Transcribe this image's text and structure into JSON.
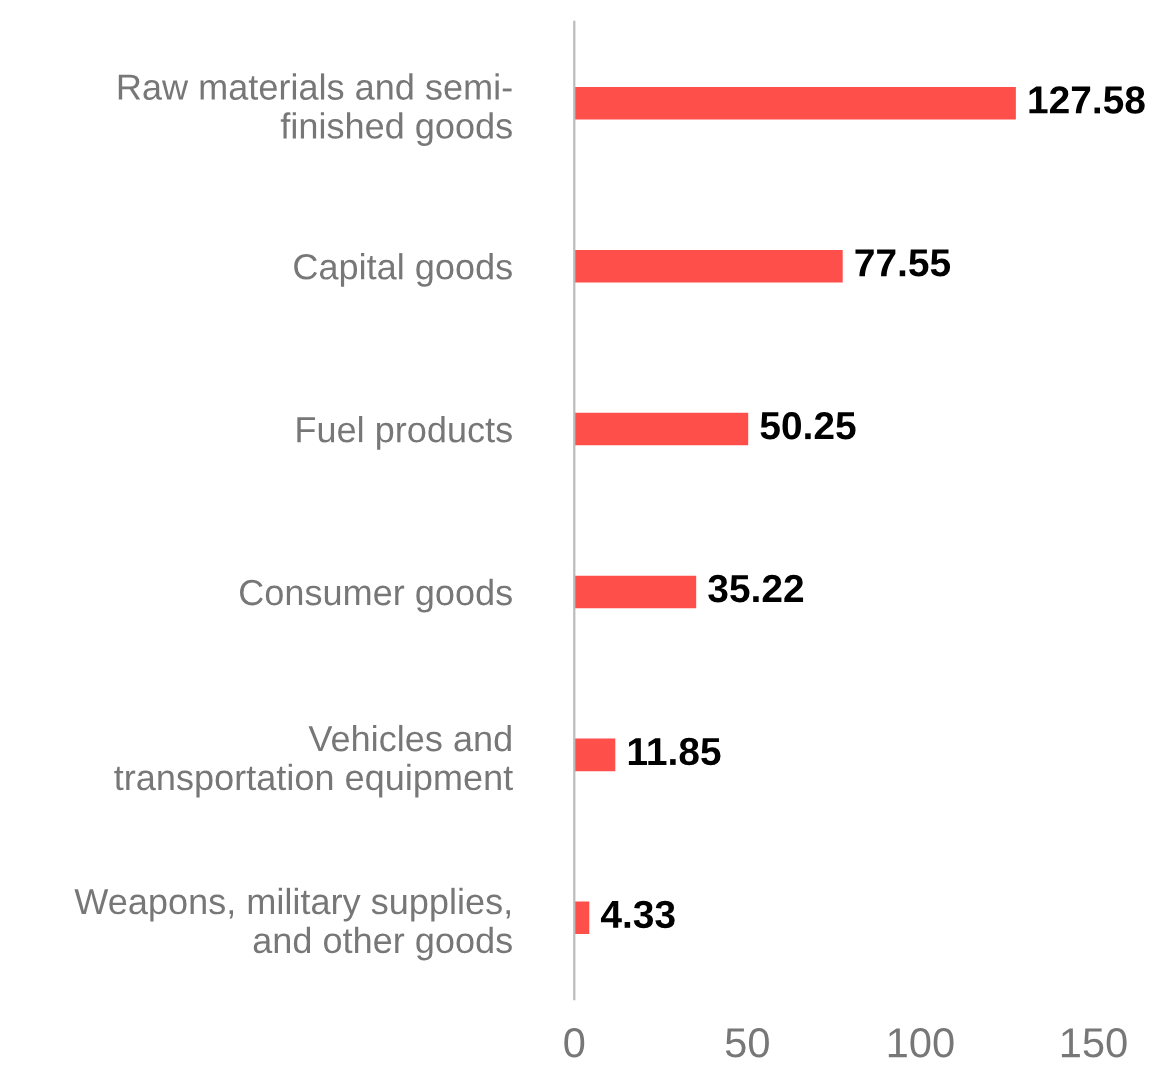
{
  "chart_data": {
    "type": "bar",
    "orientation": "horizontal",
    "categories": [
      "Raw materials and semi-\nfinished goods",
      "Capital goods",
      "Fuel products",
      "Consumer goods",
      "Vehicles and\ntransportation equipment",
      "Weapons, military supplies,\nand other goods"
    ],
    "values": [
      127.58,
      77.55,
      50.25,
      35.22,
      11.85,
      4.33
    ],
    "color": "#ff4f4a",
    "xlim": [
      0,
      150
    ],
    "xticks": [
      0,
      50,
      100,
      150
    ],
    "data_labels": true,
    "grid": false,
    "legend": false
  }
}
